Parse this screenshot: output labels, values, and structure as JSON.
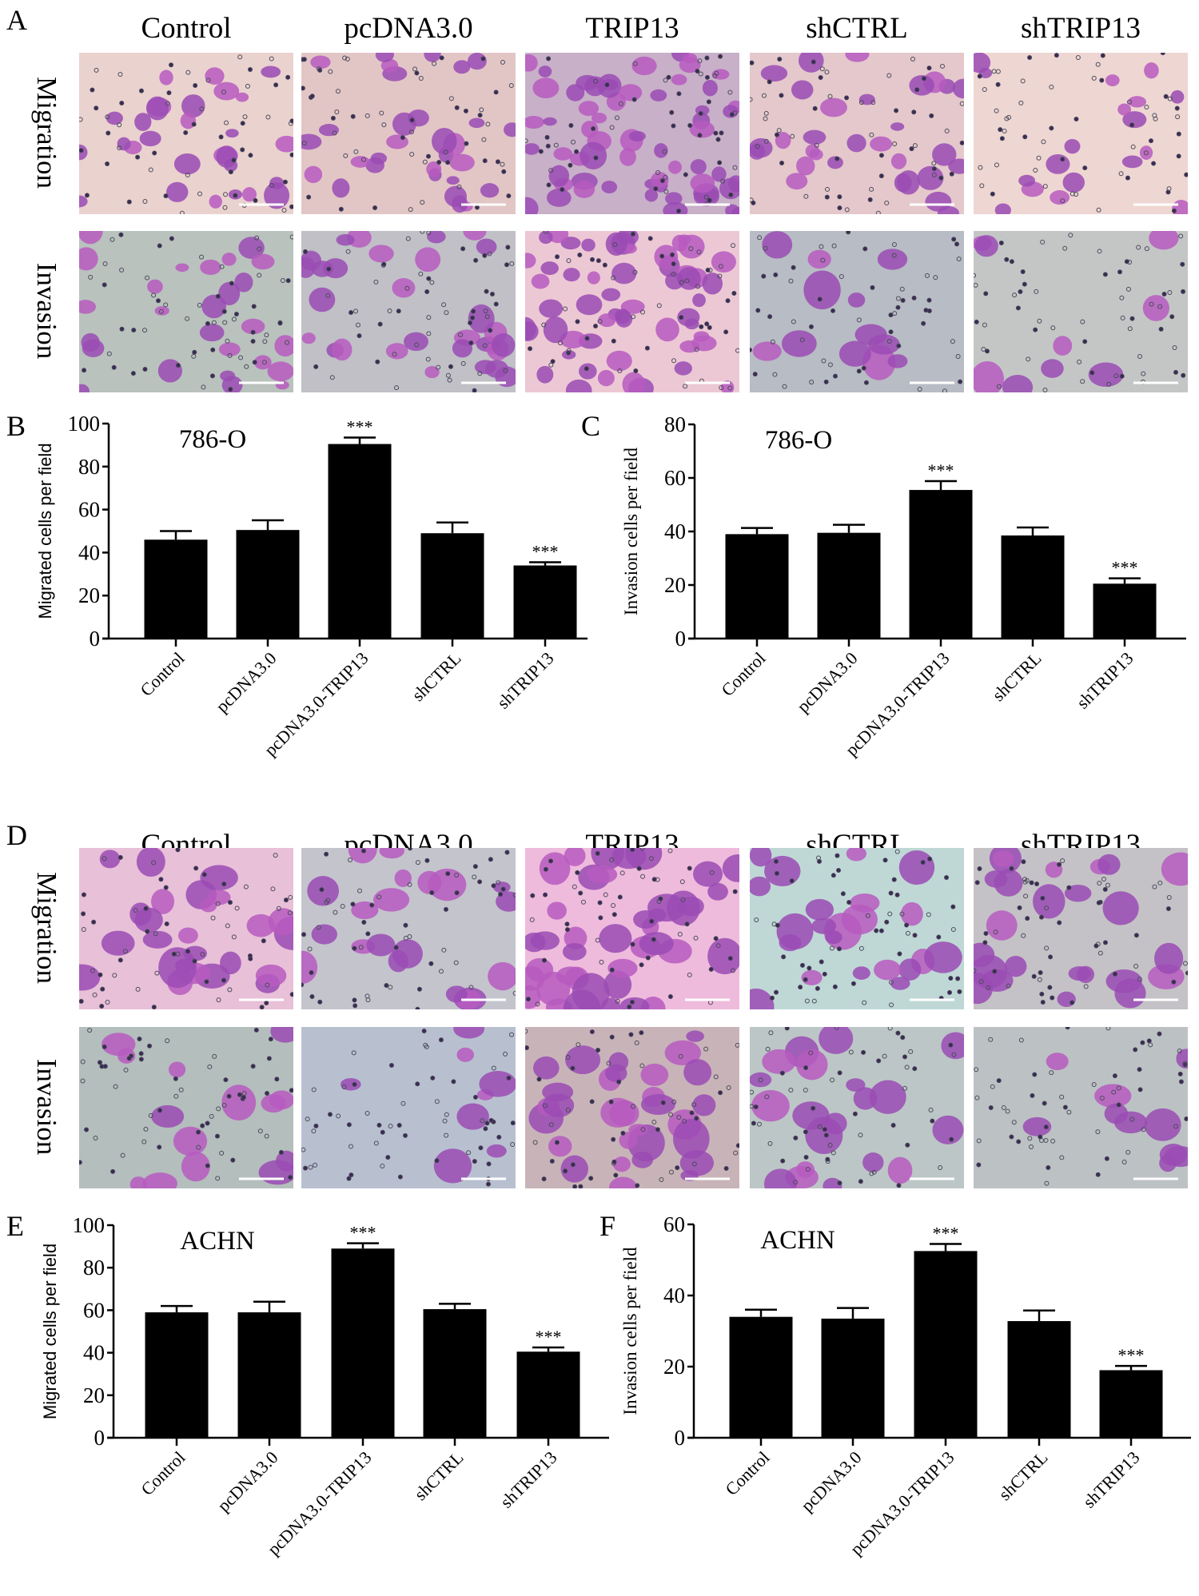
{
  "panel_labels": [
    "A",
    "B",
    "C",
    "D",
    "E",
    "F"
  ],
  "image_columns": [
    "Control",
    "pcDNA3.0",
    "TRIP13",
    "shCTRL",
    "shTRIP13"
  ],
  "image_rows": [
    "Migration",
    "Invasion"
  ],
  "chart_data": [
    {
      "id": "B",
      "type": "bar",
      "title": "786-O",
      "ylabel": "Migrated cells per field",
      "ylim": [
        0,
        100
      ],
      "yticks": [
        0,
        20,
        40,
        60,
        80,
        100
      ],
      "categories": [
        "Control",
        "pcDNA3.0",
        "pcDNA3.0-TRIP13",
        "shCTRL",
        "shTRIP13"
      ],
      "values": [
        46,
        50.5,
        90.5,
        49,
        34
      ],
      "errors": [
        4,
        4.5,
        3,
        5,
        1.5
      ],
      "annotations": [
        "",
        "",
        "***",
        "",
        "***"
      ]
    },
    {
      "id": "C",
      "type": "bar",
      "title": "786-O",
      "ylabel": "Invasion cells per field",
      "ylim": [
        0,
        80
      ],
      "yticks": [
        0,
        20,
        40,
        60,
        80
      ],
      "categories": [
        "Control",
        "pcDNA3.0",
        "pcDNA3.0-TRIP13",
        "shCTRL",
        "shTRIP13"
      ],
      "values": [
        39,
        39.5,
        55.5,
        38.5,
        20.5
      ],
      "errors": [
        2.3,
        3,
        3.3,
        3,
        2
      ],
      "annotations": [
        "",
        "",
        "***",
        "",
        "***"
      ]
    },
    {
      "id": "E",
      "type": "bar",
      "title": "ACHN",
      "ylabel": "Migrated cells per field",
      "ylim": [
        0,
        100
      ],
      "yticks": [
        0,
        20,
        40,
        60,
        80,
        100
      ],
      "categories": [
        "Control",
        "pcDNA3.0",
        "pcDNA3.0-TRIP13",
        "shCTRL",
        "shTRIP13"
      ],
      "values": [
        59,
        59,
        89,
        60.5,
        40.5
      ],
      "errors": [
        3,
        5,
        2.5,
        2.5,
        2
      ],
      "annotations": [
        "",
        "",
        "***",
        "",
        "***"
      ]
    },
    {
      "id": "F",
      "type": "bar",
      "title": "ACHN",
      "ylabel": "Invasion cells per field",
      "ylim": [
        0,
        60
      ],
      "yticks": [
        0,
        20,
        40,
        60
      ],
      "categories": [
        "Control",
        "pcDNA3.0",
        "pcDNA3.0-TRIP13",
        "shCTRL",
        "shTRIP13"
      ],
      "values": [
        34,
        33.5,
        52.5,
        32.8,
        19
      ],
      "errors": [
        2,
        3,
        2,
        3,
        1.2
      ],
      "annotations": [
        "",
        "",
        "***",
        "",
        "***"
      ]
    }
  ]
}
